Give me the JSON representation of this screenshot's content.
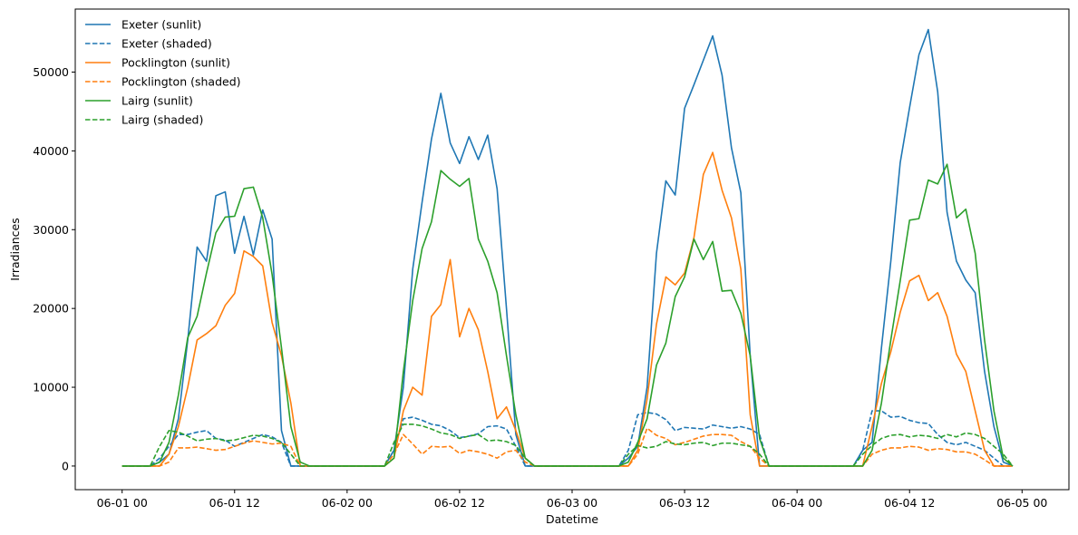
{
  "chart_data": {
    "type": "line",
    "xlabel": "Datetime",
    "ylabel": "Irradiances",
    "xlim_hours": [
      -5,
      101
    ],
    "ylim": [
      -3000,
      58000
    ],
    "x_ticks": [
      {
        "hour": 0,
        "label": "06-01 00"
      },
      {
        "hour": 12,
        "label": "06-01 12"
      },
      {
        "hour": 24,
        "label": "06-02 00"
      },
      {
        "hour": 36,
        "label": "06-02 12"
      },
      {
        "hour": 48,
        "label": "06-03 00"
      },
      {
        "hour": 60,
        "label": "06-03 12"
      },
      {
        "hour": 72,
        "label": "06-04 00"
      },
      {
        "hour": 84,
        "label": "06-04 12"
      },
      {
        "hour": 96,
        "label": "06-05 00"
      }
    ],
    "y_ticks": [
      0,
      10000,
      20000,
      30000,
      40000,
      50000
    ],
    "legend_position": "top-left",
    "grid": false,
    "x_hours": [
      0,
      1,
      2,
      3,
      4,
      5,
      6,
      7,
      8,
      9,
      10,
      11,
      12,
      13,
      14,
      15,
      16,
      17,
      18,
      19,
      20,
      21,
      22,
      23,
      24,
      25,
      26,
      27,
      28,
      29,
      30,
      31,
      32,
      33,
      34,
      35,
      36,
      37,
      38,
      39,
      40,
      41,
      42,
      43,
      44,
      45,
      46,
      47,
      48,
      49,
      50,
      51,
      52,
      53,
      54,
      55,
      56,
      57,
      58,
      59,
      60,
      61,
      62,
      63,
      64,
      65,
      66,
      67,
      68,
      69,
      70,
      71,
      72,
      73,
      74,
      75,
      76,
      77,
      78,
      79,
      80,
      81,
      82,
      83,
      84,
      85,
      86,
      87,
      88,
      89,
      90,
      91,
      92,
      93,
      94,
      95
    ],
    "series": [
      {
        "name": "Exeter (sunlit)",
        "color": "#1f77b4",
        "dash": false,
        "values": [
          0,
          0,
          0,
          0,
          500,
          1500,
          6000,
          16000,
          27800,
          26000,
          34300,
          34800,
          27000,
          31700,
          26800,
          32500,
          28800,
          4500,
          0,
          0,
          0,
          0,
          0,
          0,
          0,
          0,
          0,
          0,
          0,
          2000,
          10000,
          25000,
          33500,
          41500,
          47300,
          41000,
          38400,
          41800,
          38900,
          42000,
          35200,
          20000,
          4000,
          0,
          0,
          0,
          0,
          0,
          0,
          0,
          0,
          0,
          0,
          0,
          1000,
          2500,
          10000,
          27000,
          36200,
          34400,
          45400,
          48400,
          51500,
          54600,
          49600,
          40400,
          34700,
          14000,
          0,
          0,
          0,
          0,
          0,
          0,
          0,
          0,
          0,
          0,
          0,
          2000,
          3000,
          15000,
          26000,
          38500,
          45500,
          52200,
          55400,
          47500,
          32200,
          26000,
          23600,
          22000,
          12000,
          5000,
          500,
          0
        ]
      },
      {
        "name": "Exeter (shaded)",
        "color": "#1f77b4",
        "dash": true,
        "values": [
          0,
          0,
          0,
          0,
          1000,
          2500,
          4000,
          4000,
          4300,
          4500,
          3500,
          3300,
          2500,
          3000,
          3500,
          4000,
          3700,
          3000,
          0,
          0,
          0,
          0,
          0,
          0,
          0,
          0,
          0,
          0,
          0,
          2000,
          6000,
          6200,
          5800,
          5300,
          5100,
          4500,
          3600,
          3800,
          4100,
          5000,
          5100,
          4700,
          2500,
          0,
          0,
          0,
          0,
          0,
          0,
          0,
          0,
          0,
          0,
          0,
          2000,
          6500,
          6800,
          6600,
          5900,
          4500,
          4900,
          4800,
          4700,
          5200,
          5000,
          4800,
          5000,
          4700,
          4000,
          0,
          0,
          0,
          0,
          0,
          0,
          0,
          0,
          0,
          0,
          2000,
          7000,
          7000,
          6200,
          6300,
          5800,
          5500,
          5400,
          4000,
          3000,
          2700,
          3000,
          2500,
          2000,
          1000,
          0,
          0
        ]
      },
      {
        "name": "Pocklington (sunlit)",
        "color": "#ff7f0e",
        "dash": false,
        "values": [
          0,
          0,
          0,
          0,
          0,
          1500,
          5000,
          10000,
          16000,
          16800,
          17800,
          20400,
          21900,
          27300,
          26600,
          25400,
          18200,
          14000,
          8000,
          0,
          0,
          0,
          0,
          0,
          0,
          0,
          0,
          0,
          0,
          1000,
          7000,
          10000,
          9000,
          19000,
          20500,
          26200,
          16400,
          20000,
          17300,
          12000,
          6000,
          7500,
          4500,
          1000,
          0,
          0,
          0,
          0,
          0,
          0,
          0,
          0,
          0,
          0,
          0,
          2000,
          8500,
          18000,
          24000,
          23000,
          24500,
          29000,
          37000,
          39800,
          35000,
          31500,
          25000,
          6500,
          0,
          0,
          0,
          0,
          0,
          0,
          0,
          0,
          0,
          0,
          0,
          0,
          5000,
          10500,
          14500,
          19500,
          23500,
          24200,
          21000,
          22000,
          19000,
          14200,
          12000,
          7000,
          2000,
          0,
          0,
          0
        ]
      },
      {
        "name": "Pocklington (shaded)",
        "color": "#ff7f0e",
        "dash": true,
        "values": [
          0,
          0,
          0,
          0,
          0,
          500,
          2300,
          2300,
          2400,
          2200,
          2000,
          2100,
          2500,
          2900,
          3200,
          3000,
          2800,
          2900,
          2500,
          0,
          0,
          0,
          0,
          0,
          0,
          0,
          0,
          0,
          0,
          1500,
          4000,
          2800,
          1500,
          2500,
          2400,
          2500,
          1600,
          2000,
          1800,
          1500,
          1000,
          1800,
          2000,
          500,
          0,
          0,
          0,
          0,
          0,
          0,
          0,
          0,
          0,
          0,
          0,
          1500,
          4800,
          3900,
          3500,
          2700,
          3000,
          3400,
          3800,
          4000,
          4000,
          3900,
          3100,
          2500,
          1000,
          0,
          0,
          0,
          0,
          0,
          0,
          0,
          0,
          0,
          0,
          0,
          1500,
          2000,
          2300,
          2300,
          2500,
          2400,
          2000,
          2200,
          2100,
          1800,
          1800,
          1500,
          800,
          0,
          0,
          0
        ]
      },
      {
        "name": "Lairg (sunlit)",
        "color": "#2ca02c",
        "dash": false,
        "values": [
          0,
          0,
          0,
          0,
          500,
          3000,
          9000,
          16300,
          19000,
          24500,
          29600,
          31600,
          31700,
          35200,
          35400,
          31500,
          24300,
          15000,
          5000,
          500,
          0,
          0,
          0,
          0,
          0,
          0,
          0,
          0,
          0,
          1000,
          12000,
          21000,
          27600,
          31000,
          37500,
          36400,
          35500,
          36500,
          28800,
          26000,
          22000,
          14000,
          6500,
          1000,
          0,
          0,
          0,
          0,
          0,
          0,
          0,
          0,
          0,
          0,
          500,
          3000,
          6000,
          12800,
          15600,
          21500,
          24000,
          28800,
          26200,
          28500,
          22200,
          22300,
          19400,
          14000,
          3500,
          0,
          0,
          0,
          0,
          0,
          0,
          0,
          0,
          0,
          0,
          0,
          2000,
          8000,
          16000,
          23500,
          31200,
          31400,
          36300,
          35800,
          38300,
          31500,
          32600,
          27000,
          16000,
          7000,
          1000,
          0
        ]
      },
      {
        "name": "Lairg (shaded)",
        "color": "#2ca02c",
        "dash": true,
        "values": [
          0,
          0,
          0,
          0,
          2500,
          4500,
          4300,
          3800,
          3200,
          3400,
          3500,
          3200,
          3300,
          3600,
          3900,
          3800,
          3500,
          3000,
          1500,
          0,
          0,
          0,
          0,
          0,
          0,
          0,
          0,
          0,
          0,
          3000,
          5300,
          5300,
          5100,
          4700,
          4200,
          4000,
          3500,
          3800,
          4000,
          3200,
          3300,
          3100,
          2600,
          1000,
          0,
          0,
          0,
          0,
          0,
          0,
          0,
          0,
          0,
          0,
          1500,
          2600,
          2300,
          2500,
          3100,
          2800,
          2700,
          2900,
          3000,
          2600,
          2900,
          2900,
          2700,
          2500,
          1500,
          0,
          0,
          0,
          0,
          0,
          0,
          0,
          0,
          0,
          0,
          1500,
          2600,
          3500,
          3900,
          4000,
          3700,
          3900,
          3800,
          3500,
          4000,
          3700,
          4200,
          4000,
          3500,
          2500,
          1500,
          0
        ]
      }
    ]
  }
}
